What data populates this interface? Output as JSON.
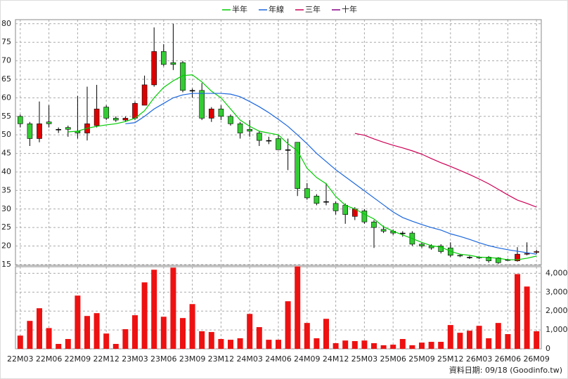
{
  "chart_data": [
    {
      "type": "candlestick",
      "legend": "top",
      "up_color": "#dd0000",
      "down_color": "#33cc33",
      "grid": true,
      "ylim": [
        14.8,
        81.1
      ],
      "yticks": [
        15,
        20,
        25,
        30,
        35,
        40,
        45,
        50,
        55,
        60,
        65,
        70,
        75,
        80
      ],
      "open": [
        55,
        53,
        49,
        53.5,
        51.5,
        52,
        51,
        50.5,
        52.5,
        57.5,
        54.5,
        54,
        54.5,
        58,
        63.5,
        72.5,
        69.5,
        69.5,
        62,
        62,
        54.5,
        57,
        55,
        53,
        51.5,
        50.5,
        48.5,
        49,
        46,
        48,
        35.5,
        33.5,
        32,
        31.5,
        31,
        28,
        29.5,
        26.5,
        24.5,
        24,
        23.5,
        23.5,
        20.5,
        20,
        20,
        19.5,
        17.5,
        17,
        17,
        17,
        16.8,
        16.3,
        16,
        17.8,
        18.3
      ],
      "high": [
        55.5,
        53.5,
        59,
        58,
        52,
        52.5,
        60.5,
        63,
        63.5,
        58,
        55,
        55,
        59,
        66,
        79,
        74.5,
        80,
        70,
        62.5,
        64,
        57.5,
        58,
        55.5,
        53.5,
        54,
        51,
        49.5,
        50,
        49,
        48,
        37,
        34,
        37,
        32,
        31.5,
        30.5,
        30,
        27,
        25.5,
        24.5,
        24,
        24,
        21,
        20.5,
        20.5,
        21,
        17.8,
        17.3,
        17.2,
        17.3,
        17,
        16.6,
        19.7,
        21,
        19
      ],
      "low": [
        52,
        47,
        48,
        52,
        50.5,
        49.5,
        49,
        48.5,
        52,
        54,
        53.5,
        53.5,
        54,
        58,
        63,
        68.5,
        67.5,
        61.5,
        60,
        54,
        53.5,
        54,
        52.5,
        49,
        49.5,
        47,
        47.5,
        46,
        40.5,
        33.5,
        32.5,
        31,
        31,
        28.5,
        26,
        27,
        26,
        19.5,
        23.5,
        23,
        22.5,
        20,
        19.5,
        19,
        18,
        17,
        17,
        16.5,
        16.5,
        15.5,
        15.2,
        16,
        15.8,
        17.5,
        17.8
      ],
      "close": [
        53,
        49,
        53,
        53,
        51.5,
        51.5,
        50.5,
        53,
        57,
        54.5,
        54,
        54.5,
        58.5,
        63.5,
        72.5,
        69,
        69,
        62,
        62,
        54.5,
        57,
        55,
        53,
        50.5,
        51,
        48.5,
        48.5,
        46,
        46,
        35.5,
        33,
        31.5,
        32,
        29.5,
        28.5,
        30,
        26.5,
        25,
        24,
        23.5,
        23.5,
        20.5,
        20,
        19.5,
        18.5,
        17.5,
        17.3,
        17,
        16.8,
        16,
        15.5,
        16.3,
        17.8,
        18,
        18.5
      ],
      "series": [
        {
          "name": "半年",
          "color": "#00cc00",
          "values": [
            null,
            null,
            null,
            null,
            null,
            50.8,
            51,
            51.8,
            52.3,
            52.7,
            53,
            53.6,
            54.5,
            56.5,
            60,
            62.8,
            64.6,
            66,
            66.2,
            64.3,
            61.8,
            60,
            57,
            54,
            52.3,
            51,
            50.5,
            50,
            47.6,
            45.7,
            41,
            38.5,
            36.8,
            33.4,
            31,
            30,
            28.6,
            27.3,
            25.2,
            24,
            23,
            22,
            21,
            20.1,
            19.7,
            18.6,
            17.8,
            17.5,
            17,
            16.9,
            16.7,
            16.3,
            16.3,
            16.7,
            17.3
          ]
        },
        {
          "name": "年線",
          "color": "#1a66dd",
          "values": [
            null,
            null,
            null,
            null,
            null,
            null,
            null,
            null,
            null,
            null,
            null,
            53,
            53.3,
            55,
            57,
            58.5,
            60,
            60.8,
            61.2,
            61.2,
            61.2,
            61.2,
            61,
            60.3,
            59,
            57.6,
            56,
            54.2,
            52.3,
            50,
            47.6,
            45,
            42.8,
            40.6,
            38.7,
            36.8,
            34.9,
            33,
            31.1,
            29.2,
            27.7,
            26.7,
            25.8,
            25,
            24.3,
            23.3,
            22.6,
            21.8,
            20.9,
            20.1,
            19.5,
            19,
            18.6,
            18.2,
            17.8
          ]
        },
        {
          "name": "三年",
          "color": "#cc0055",
          "values": [
            null,
            null,
            null,
            null,
            null,
            null,
            null,
            null,
            null,
            null,
            null,
            null,
            null,
            null,
            null,
            null,
            null,
            null,
            null,
            null,
            null,
            null,
            null,
            null,
            null,
            null,
            null,
            null,
            null,
            null,
            null,
            null,
            null,
            null,
            null,
            50.4,
            49.9,
            48.9,
            48,
            47.2,
            46.5,
            45.7,
            44.8,
            43.6,
            42.5,
            41.5,
            40.4,
            39.3,
            38.1,
            36.8,
            35.3,
            33.8,
            32.4,
            31.5,
            30.5
          ]
        },
        {
          "name": "十年",
          "color": "#880088",
          "values": [
            null,
            null,
            null,
            null,
            null,
            null,
            null,
            null,
            null,
            null,
            null,
            null,
            null,
            null,
            null,
            null,
            null,
            null,
            null,
            null,
            null,
            null,
            null,
            null,
            null,
            null,
            null,
            null,
            null,
            null,
            null,
            null,
            null,
            null,
            null,
            null,
            null,
            null,
            null,
            null,
            null,
            null,
            null,
            null,
            null,
            null,
            null,
            null,
            null,
            null,
            null,
            null,
            null,
            null,
            null
          ]
        }
      ]
    },
    {
      "type": "bar",
      "color": "#ee1111",
      "grid": true,
      "categories": [
        "22M03",
        null,
        null,
        "22M06",
        null,
        null,
        "22M09",
        null,
        null,
        "22M12",
        null,
        null,
        "23M03",
        null,
        null,
        "23M06",
        null,
        null,
        "23M09",
        null,
        null,
        "23M12",
        null,
        null,
        "24M03",
        null,
        null,
        "24M06",
        null,
        null,
        "24M09",
        null,
        null,
        "24M12",
        null,
        null,
        "25M03",
        null,
        null,
        "25M06",
        null,
        null,
        "25M09",
        null,
        null,
        "25M12",
        null,
        null,
        "26M03",
        null,
        null,
        "26M06",
        null,
        null,
        "26M09"
      ],
      "values": [
        700,
        1480,
        2150,
        1100,
        260,
        520,
        2820,
        1740,
        1890,
        810,
        260,
        1040,
        1780,
        3520,
        4190,
        1700,
        4300,
        1630,
        2370,
        930,
        890,
        520,
        480,
        560,
        1850,
        1150,
        480,
        480,
        2520,
        4370,
        1370,
        560,
        1590,
        300,
        440,
        410,
        440,
        300,
        190,
        220,
        520,
        190,
        330,
        370,
        370,
        1260,
        850,
        960,
        1220,
        560,
        1370,
        780,
        3960,
        3300,
        930
      ],
      "ylim": [
        0,
        4350
      ],
      "yticks": [
        0,
        {
          "value": 1000,
          "label": "1,000"
        },
        {
          "value": 2000,
          "label": "2,000"
        },
        {
          "value": 3000,
          "label": "3,000"
        },
        {
          "value": 4000,
          "label": "4,000"
        }
      ],
      "annotation": "資料日期: 09/18  (Goodinfo.tw)"
    }
  ]
}
